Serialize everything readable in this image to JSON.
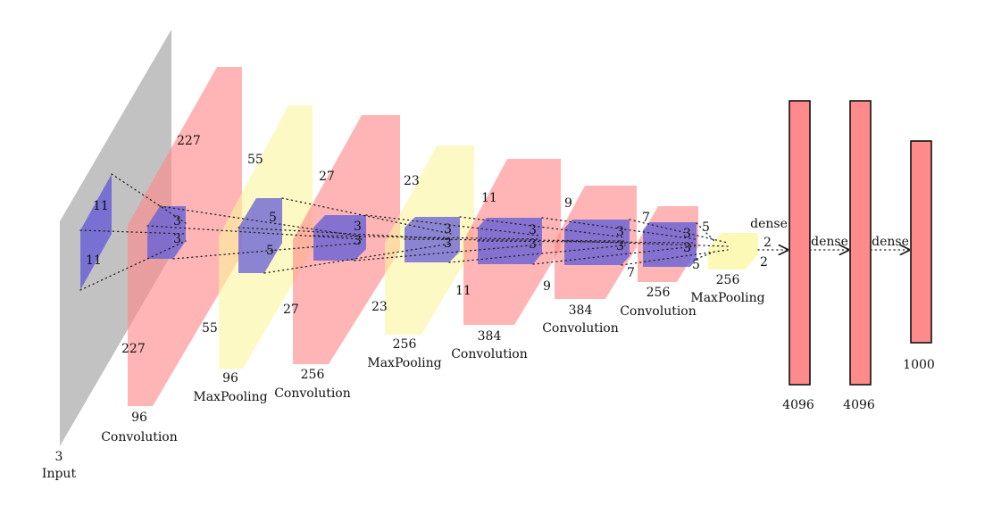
{
  "colors": {
    "input": "#c2c2c2",
    "convolution": "#ff8a8c",
    "maxpooling": "#fbf59d",
    "kernel": "#6a63d6",
    "dense": "#ff8a8c"
  },
  "input": {
    "depth": "3",
    "name": "Input",
    "height": "227",
    "width": "227"
  },
  "kernel1": {
    "h": "11",
    "w": "11"
  },
  "layers": [
    {
      "id": "conv1",
      "depth": "96",
      "name": "Convolution",
      "top": "227",
      "bottom": "227",
      "k1": "3",
      "k2": "3"
    },
    {
      "id": "pool1",
      "depth": "96",
      "name": "MaxPooling",
      "top": "55",
      "bottom": "55",
      "k1": "5",
      "k2": "5"
    },
    {
      "id": "conv2",
      "depth": "256",
      "name": "Convolution",
      "top": "27",
      "bottom": "27",
      "k1": "3",
      "k2": "3"
    },
    {
      "id": "pool2",
      "depth": "256",
      "name": "MaxPooling",
      "top": "23",
      "bottom": "23",
      "k1": "3",
      "k2": "3"
    },
    {
      "id": "conv3",
      "depth": "384",
      "name": "Convolution",
      "top": "11",
      "bottom": "11",
      "k1": "3",
      "k2": "3"
    },
    {
      "id": "conv4",
      "depth": "384",
      "name": "Convolution",
      "top": "9",
      "bottom": "9",
      "k1": "3",
      "k2": "3"
    },
    {
      "id": "conv5",
      "depth": "256",
      "name": "Convolution",
      "top": "7",
      "bottom": "7",
      "k1": "3",
      "k2": "3"
    },
    {
      "id": "pool3",
      "depth": "256",
      "name": "MaxPooling",
      "top": "5",
      "bottom": "5",
      "k1": "2",
      "k2": "2"
    }
  ],
  "dense": [
    {
      "units": "4096",
      "edge": "dense"
    },
    {
      "units": "4096",
      "edge": "dense"
    },
    {
      "units": "1000",
      "edge": "dense"
    }
  ]
}
